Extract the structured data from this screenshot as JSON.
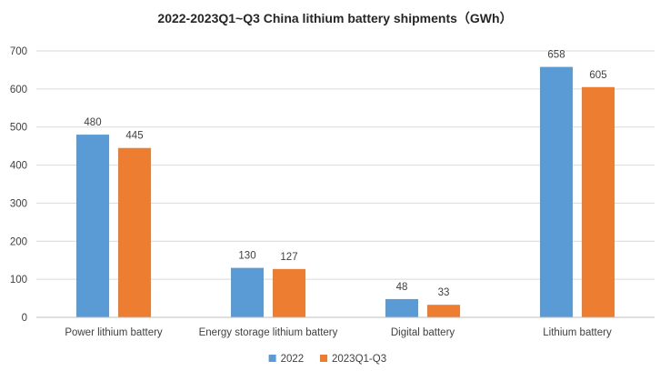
{
  "chart_data": {
    "type": "bar",
    "title": "2022-2023Q1~Q3 China lithium battery shipments（GWh）",
    "xlabel": "",
    "ylabel": "",
    "categories": [
      "Power lithium battery",
      "Energy storage lithium battery",
      "Digital battery",
      "Lithium battery"
    ],
    "series": [
      {
        "name": "2022",
        "color": "#5b9bd5",
        "values": [
          480,
          130,
          48,
          658
        ]
      },
      {
        "name": "2023Q1-Q3",
        "color": "#ed7d31",
        "values": [
          445,
          127,
          33,
          605
        ]
      }
    ],
    "ylim": [
      0,
      700
    ],
    "yticks": [
      0,
      100,
      200,
      300,
      400,
      500,
      600,
      700
    ],
    "grid": true,
    "legend": "bottom-center",
    "data_labels": true
  }
}
